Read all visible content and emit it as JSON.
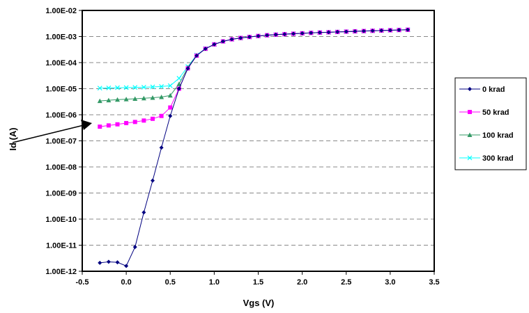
{
  "chart_data": {
    "type": "scatter",
    "xlabel": "Vgs (V)",
    "ylabel": "Id (A)",
    "xlim": [
      -0.5,
      3.5
    ],
    "ylim": [
      1e-12,
      0.01
    ],
    "yscale": "log",
    "grid": "horizontal dashed",
    "legend_position": "right",
    "x_ticks": [
      "-0.5",
      "0.0",
      "0.5",
      "1.0",
      "1.5",
      "2.0",
      "2.5",
      "3.0",
      "3.5"
    ],
    "x_tick_values": [
      -0.5,
      0,
      0.5,
      1.0,
      1.5,
      2.0,
      2.5,
      3.0,
      3.5
    ],
    "y_ticks": [
      "1.00E-12",
      "1.00E-11",
      "1.00E-10",
      "1.00E-09",
      "1.00E-08",
      "1.00E-07",
      "1.00E-06",
      "1.00E-05",
      "1.00E-04",
      "1.00E-03",
      "1.00E-02"
    ],
    "y_tick_values": [
      1e-12,
      1e-11,
      1e-10,
      1e-09,
      1e-08,
      1e-07,
      1e-06,
      1e-05,
      0.0001,
      0.001,
      0.01
    ],
    "x": [
      -0.3,
      -0.2,
      -0.1,
      0.0,
      0.1,
      0.2,
      0.3,
      0.4,
      0.5,
      0.6,
      0.7,
      0.8,
      0.9,
      1.0,
      1.1,
      1.2,
      1.3,
      1.4,
      1.5,
      1.6,
      1.7,
      1.8,
      1.9,
      2.0,
      2.1,
      2.2,
      2.3,
      2.4,
      2.5,
      2.6,
      2.7,
      2.8,
      2.9,
      3.0,
      3.1,
      3.2
    ],
    "series": [
      {
        "name": "0 krad",
        "color": "#000080",
        "marker": "diamond",
        "values": [
          2.1e-12,
          2.3e-12,
          2.2e-12,
          1.6e-12,
          8.5e-12,
          1.8e-10,
          3e-09,
          5.5e-08,
          9e-07,
          1e-05,
          6e-05,
          0.000185,
          0.00034,
          0.0005,
          0.00065,
          0.00078,
          0.00088,
          0.00096,
          0.00105,
          0.00112,
          0.00118,
          0.00123,
          0.00128,
          0.00133,
          0.00138,
          0.00142,
          0.00146,
          0.0015,
          0.00154,
          0.00158,
          0.00162,
          0.00166,
          0.0017,
          0.00174,
          0.00178,
          0.00182
        ]
      },
      {
        "name": "50 krad",
        "color": "#FF00FF",
        "marker": "square",
        "values": [
          3.5e-07,
          3.9e-07,
          4.3e-07,
          4.8e-07,
          5.3e-07,
          6e-07,
          7e-07,
          9e-07,
          1.9e-06,
          1e-05,
          6e-05,
          0.000185,
          0.00034,
          0.0005,
          0.00065,
          0.00078,
          0.00088,
          0.00096,
          0.00105,
          0.00112,
          0.00118,
          0.00123,
          0.00128,
          0.00133,
          0.00138,
          0.00142,
          0.00146,
          0.0015,
          0.00154,
          0.00158,
          0.00162,
          0.00166,
          0.0017,
          0.00174,
          0.00178,
          0.00182
        ]
      },
      {
        "name": "100 krad",
        "color": "#339966",
        "marker": "triangle",
        "values": [
          3.4e-06,
          3.6e-06,
          3.8e-06,
          3.95e-06,
          4.1e-06,
          4.3e-06,
          4.5e-06,
          4.8e-06,
          5.5e-06,
          1.5e-05,
          6.5e-05,
          0.00019,
          0.00034,
          0.0005,
          0.00065,
          0.00078,
          0.00088,
          0.00096,
          0.00105,
          0.00112,
          0.00118,
          0.00123,
          0.00128,
          0.00133,
          0.00138,
          0.00142,
          0.00146,
          0.0015,
          0.00154,
          0.00158,
          0.00162,
          0.00166,
          0.0017,
          0.00174,
          0.00178,
          0.00182
        ]
      },
      {
        "name": "300 krad",
        "color": "#00FFFF",
        "marker": "x",
        "values": [
          1.05e-05,
          1.07e-05,
          1.09e-05,
          1.1e-05,
          1.12e-05,
          1.14e-05,
          1.17e-05,
          1.21e-05,
          1.3e-05,
          2.5e-05,
          7e-05,
          0.000195,
          0.000345,
          0.0005,
          0.00065,
          0.00078,
          0.00088,
          0.00096,
          0.00105,
          0.00112,
          0.00118,
          0.00123,
          0.00128,
          0.00133,
          0.00138,
          0.00142,
          0.00146,
          0.0015,
          0.00154,
          0.00158,
          0.00162,
          0.00166,
          0.0017,
          0.00174,
          0.00178,
          0.00182
        ]
      }
    ]
  }
}
